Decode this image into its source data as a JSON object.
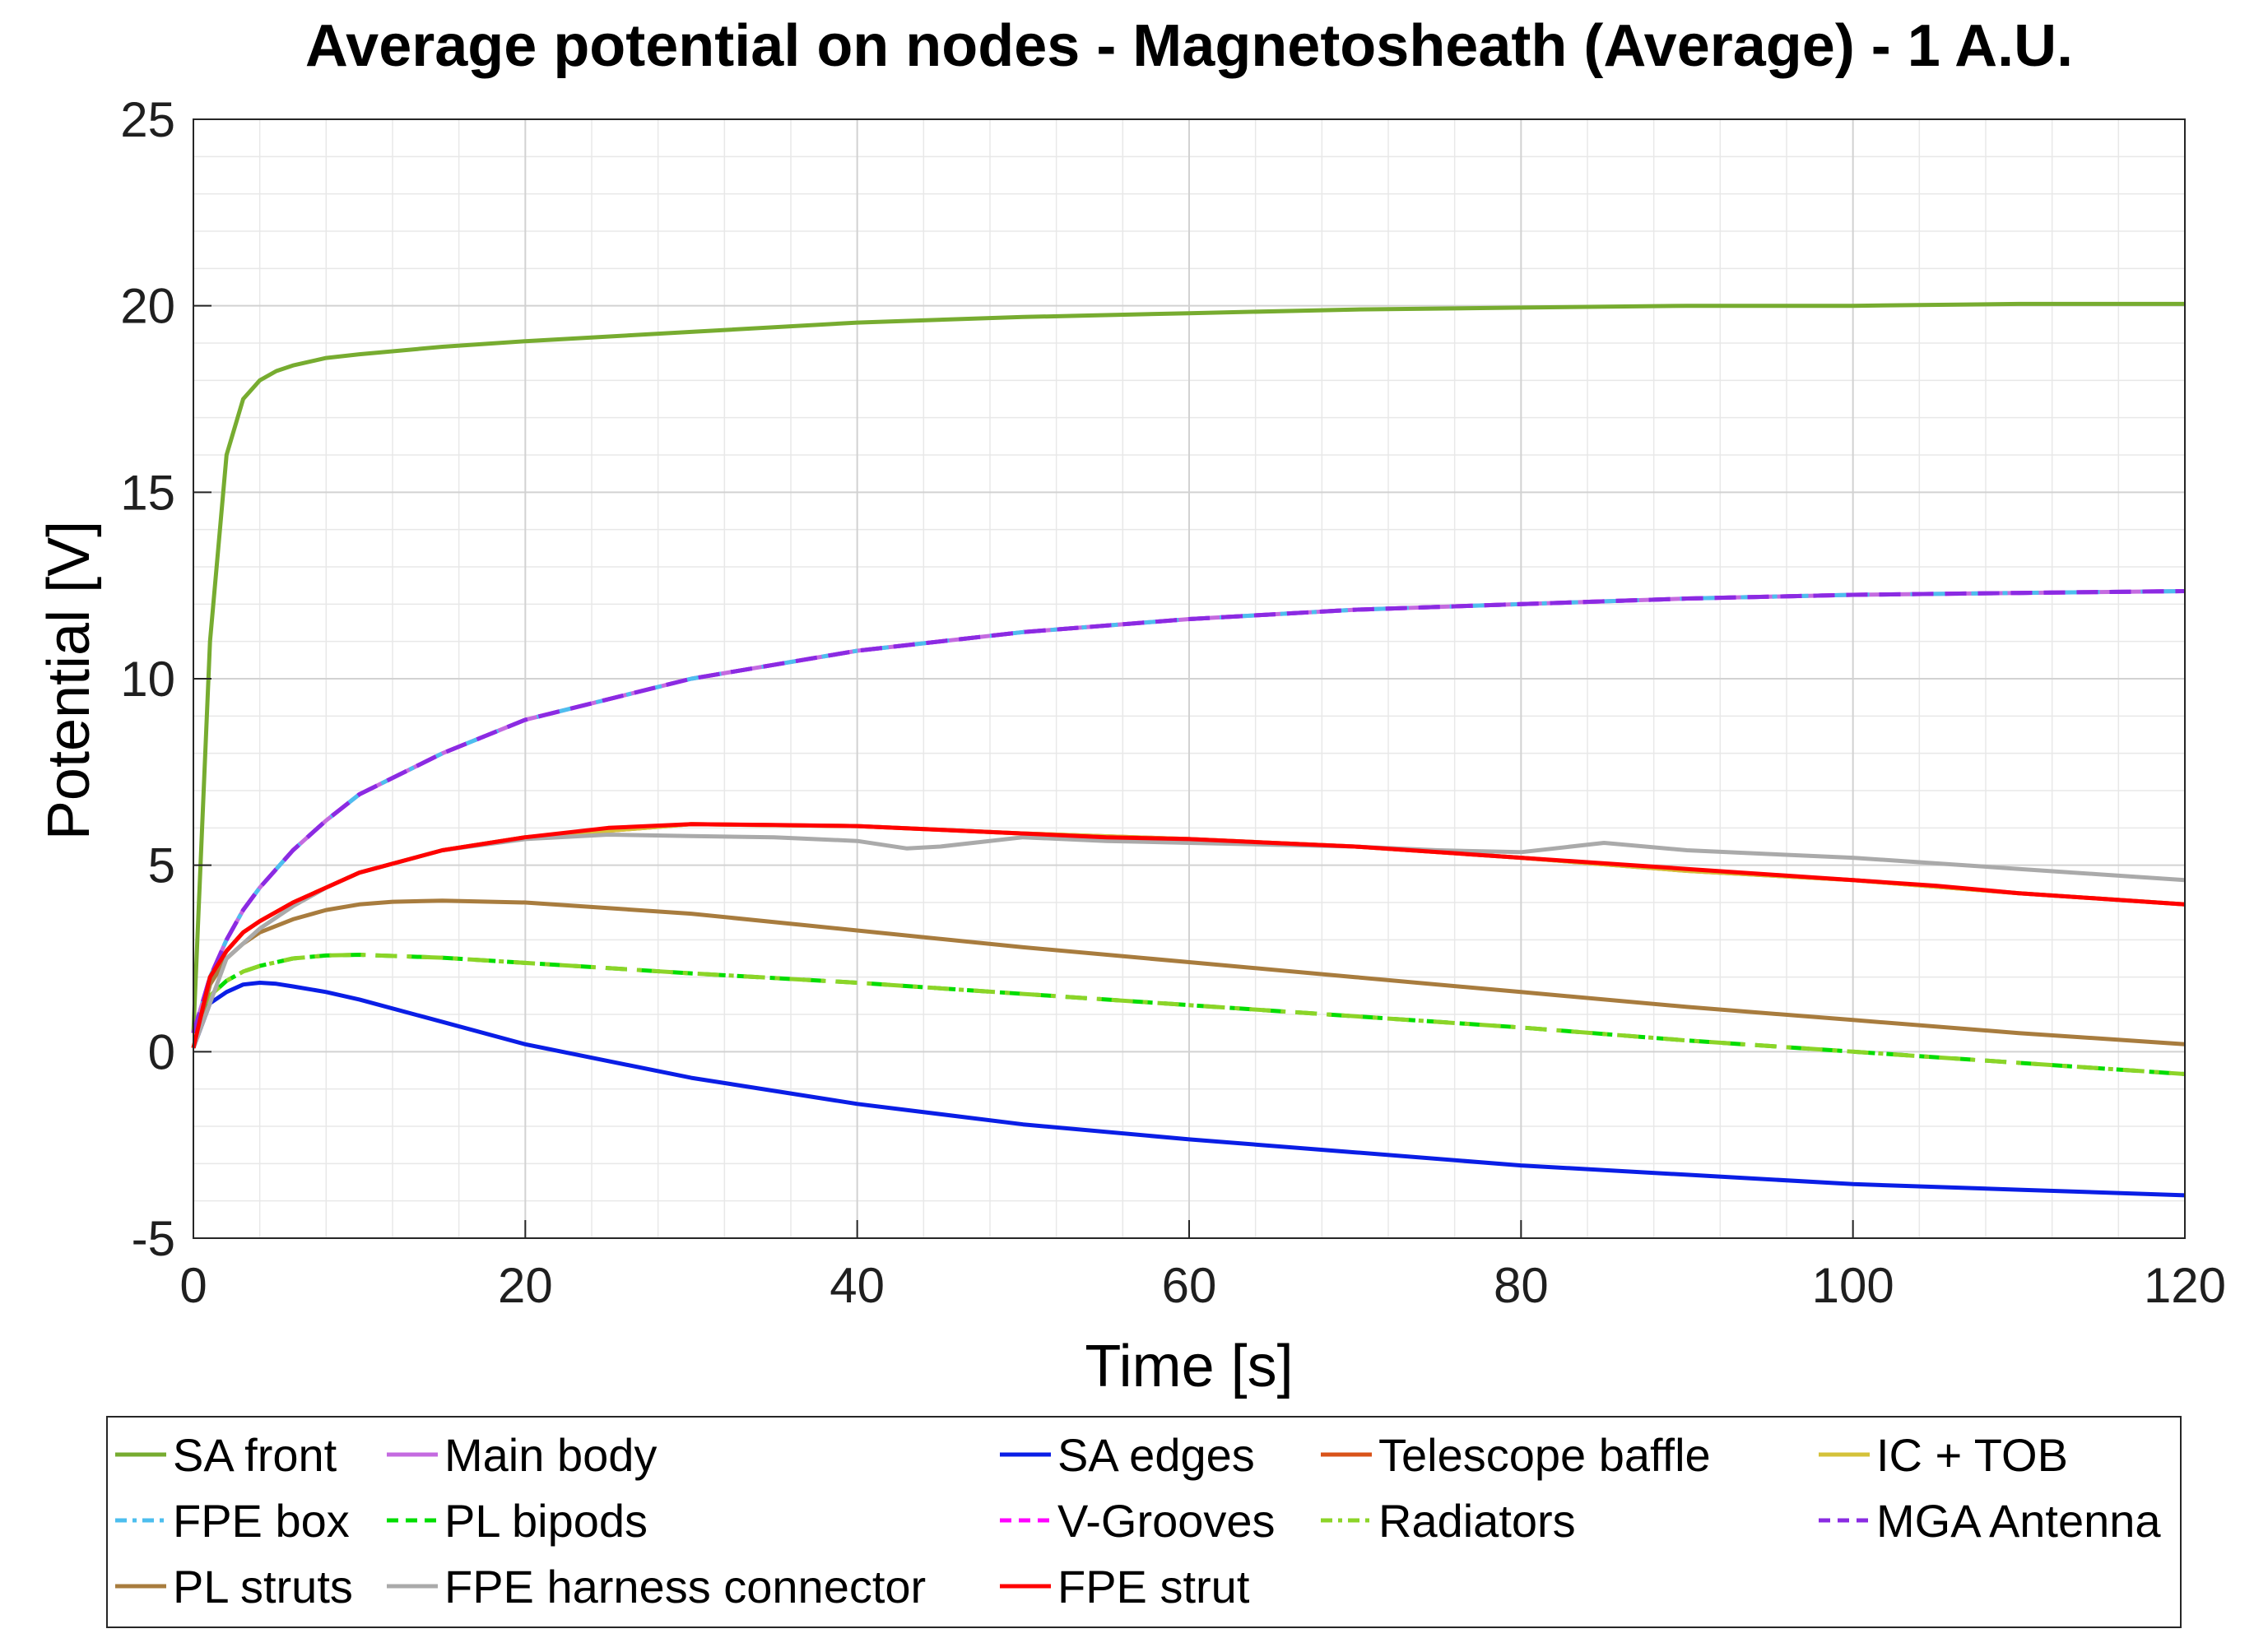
{
  "chart_data": {
    "type": "line",
    "title": "Average potential on nodes - Magnetosheath (Average) - 1 A.U.",
    "xlabel": "Time [s]",
    "ylabel": "Potential [V]",
    "xlim": [
      0,
      120
    ],
    "ylim": [
      -5,
      25
    ],
    "xticks": [
      0,
      20,
      40,
      60,
      80,
      100,
      120
    ],
    "yticks": [
      -5,
      0,
      5,
      10,
      15,
      20,
      25
    ],
    "xtick_labels": [
      "0",
      "20",
      "40",
      "60",
      "80",
      "100",
      "120"
    ],
    "ytick_labels": [
      "-5",
      "0",
      "5",
      "10",
      "15",
      "20",
      "25"
    ],
    "grid": true,
    "minor_grid": true,
    "legend_position": "bottom",
    "series": [
      {
        "name": "SA front",
        "color": "#77AC30",
        "dash": "solid",
        "x": [
          0,
          1,
          2,
          3,
          4,
          5,
          6,
          8,
          10,
          15,
          20,
          30,
          40,
          50,
          60,
          70,
          80,
          90,
          100,
          110,
          120
        ],
        "y": [
          0.5,
          11,
          16,
          17.5,
          18.0,
          18.25,
          18.4,
          18.6,
          18.7,
          18.9,
          19.05,
          19.3,
          19.55,
          19.7,
          19.8,
          19.9,
          19.95,
          20.0,
          20.0,
          20.05,
          20.05
        ]
      },
      {
        "name": "Main body",
        "color": "#C46BE0",
        "dash": "solid",
        "x": [
          0,
          1,
          2,
          3,
          4,
          6,
          8,
          10,
          15,
          20,
          30,
          40,
          50,
          60,
          70,
          80,
          90,
          100,
          110,
          120
        ],
        "y": [
          0.5,
          2.0,
          3.0,
          3.8,
          4.4,
          5.4,
          6.2,
          6.9,
          8.0,
          8.9,
          10.0,
          10.75,
          11.25,
          11.6,
          11.85,
          12.0,
          12.15,
          12.25,
          12.3,
          12.35
        ]
      },
      {
        "name": "SA edges",
        "color": "#0A1EE6",
        "dash": "solid",
        "x": [
          0,
          1,
          2,
          3,
          4,
          5,
          6,
          8,
          10,
          15,
          20,
          30,
          40,
          50,
          60,
          70,
          80,
          90,
          100,
          110,
          120
        ],
        "y": [
          0.1,
          1.3,
          1.6,
          1.8,
          1.85,
          1.82,
          1.75,
          1.6,
          1.4,
          0.8,
          0.2,
          -0.7,
          -1.4,
          -1.95,
          -2.35,
          -2.7,
          -3.05,
          -3.3,
          -3.55,
          -3.7,
          -3.85
        ]
      },
      {
        "name": "Telescope baffle",
        "color": "#D95319",
        "dash": "solid",
        "x": [
          0,
          1,
          2,
          3,
          4,
          6,
          8,
          10,
          15,
          20,
          30,
          40,
          50,
          60,
          70,
          80,
          90,
          100,
          110,
          120
        ],
        "y": [
          0.1,
          2.0,
          2.7,
          3.2,
          3.5,
          4.0,
          4.4,
          4.8,
          5.4,
          5.75,
          6.1,
          6.05,
          5.85,
          5.7,
          5.5,
          5.2,
          4.85,
          4.6,
          4.25,
          3.95
        ]
      },
      {
        "name": "IC + TOB",
        "color": "#D4C23A",
        "dash": "solid",
        "x": [
          0,
          1,
          2,
          3,
          4,
          6,
          8,
          10,
          15,
          20,
          30,
          40,
          50,
          60,
          70,
          80,
          90,
          100,
          110,
          120
        ],
        "y": [
          0.1,
          2.0,
          2.7,
          3.2,
          3.5,
          4.0,
          4.4,
          4.8,
          5.4,
          5.75,
          6.1,
          6.05,
          5.85,
          5.7,
          5.5,
          5.2,
          4.85,
          4.6,
          4.25,
          3.95
        ]
      },
      {
        "name": "FPE box",
        "color": "#4DBEEE",
        "dash": "dash-dot",
        "x": [
          0,
          1,
          2,
          3,
          4,
          6,
          8,
          10,
          15,
          20,
          30,
          40,
          50,
          60,
          70,
          80,
          90,
          100,
          110,
          120
        ],
        "y": [
          0.5,
          2.0,
          3.0,
          3.8,
          4.4,
          5.4,
          6.2,
          6.9,
          8.0,
          8.9,
          10.0,
          10.75,
          11.25,
          11.6,
          11.85,
          12.0,
          12.15,
          12.25,
          12.3,
          12.35
        ]
      },
      {
        "name": "PL bipods",
        "color": "#00DD00",
        "dash": "dash",
        "x": [
          0,
          1,
          2,
          3,
          4,
          6,
          8,
          10,
          15,
          20,
          30,
          40,
          50,
          60,
          70,
          80,
          90,
          100,
          110,
          120
        ],
        "y": [
          0.1,
          1.5,
          1.9,
          2.15,
          2.3,
          2.5,
          2.58,
          2.6,
          2.52,
          2.38,
          2.1,
          1.85,
          1.55,
          1.25,
          0.95,
          0.65,
          0.3,
          0.0,
          -0.3,
          -0.6
        ]
      },
      {
        "name": "V-Grooves",
        "color": "#FF00FF",
        "dash": "dash",
        "x": [
          0,
          1,
          2,
          3,
          4,
          6,
          8,
          10,
          15,
          20,
          30,
          40,
          50,
          60,
          70,
          80,
          90,
          100,
          110,
          120
        ],
        "y": [
          0.5,
          2.0,
          3.0,
          3.8,
          4.4,
          5.4,
          6.2,
          6.9,
          8.0,
          8.9,
          10.0,
          10.75,
          11.25,
          11.6,
          11.85,
          12.0,
          12.15,
          12.25,
          12.3,
          12.35
        ]
      },
      {
        "name": "Radiators",
        "color": "#8CD428",
        "dash": "dash-dot",
        "x": [
          0,
          1,
          2,
          3,
          4,
          6,
          8,
          10,
          15,
          20,
          30,
          40,
          50,
          60,
          70,
          80,
          90,
          100,
          110,
          120
        ],
        "y": [
          0.1,
          1.5,
          1.9,
          2.15,
          2.3,
          2.5,
          2.58,
          2.6,
          2.52,
          2.38,
          2.1,
          1.85,
          1.55,
          1.25,
          0.95,
          0.65,
          0.3,
          0.0,
          -0.3,
          -0.6
        ]
      },
      {
        "name": "MGA Antenna",
        "color": "#8A2BE2",
        "dash": "dash",
        "x": [
          0,
          1,
          2,
          3,
          4,
          6,
          8,
          10,
          15,
          20,
          30,
          40,
          50,
          60,
          70,
          80,
          90,
          100,
          110,
          120
        ],
        "y": [
          0.5,
          2.0,
          3.0,
          3.8,
          4.4,
          5.4,
          6.2,
          6.9,
          8.0,
          8.9,
          10.0,
          10.75,
          11.25,
          11.6,
          11.85,
          12.0,
          12.15,
          12.25,
          12.3,
          12.35
        ]
      },
      {
        "name": "PL struts",
        "color": "#A87C3E",
        "dash": "solid",
        "x": [
          0,
          1,
          2,
          3,
          4,
          6,
          8,
          10,
          12,
          15,
          20,
          30,
          40,
          50,
          60,
          70,
          80,
          90,
          100,
          110,
          120
        ],
        "y": [
          0.1,
          1.8,
          2.5,
          2.9,
          3.2,
          3.55,
          3.8,
          3.95,
          4.02,
          4.05,
          4.0,
          3.7,
          3.25,
          2.8,
          2.4,
          2.0,
          1.6,
          1.2,
          0.85,
          0.5,
          0.2
        ]
      },
      {
        "name": "FPE harness connector",
        "color": "#AAAAAA",
        "dash": "solid",
        "x": [
          0,
          2,
          4,
          6,
          8,
          10,
          15,
          20,
          25,
          30,
          35,
          40,
          43,
          45,
          50,
          55,
          60,
          65,
          70,
          75,
          80,
          85,
          90,
          95,
          100,
          105,
          110,
          115,
          120
        ],
        "y": [
          0.1,
          2.5,
          3.3,
          3.9,
          4.4,
          4.8,
          5.4,
          5.7,
          5.82,
          5.78,
          5.75,
          5.65,
          5.45,
          5.5,
          5.75,
          5.65,
          5.6,
          5.55,
          5.5,
          5.4,
          5.35,
          5.6,
          5.4,
          5.3,
          5.2,
          5.05,
          4.9,
          4.75,
          4.6
        ]
      },
      {
        "name": "FPE strut",
        "color": "#FF0000",
        "dash": "solid",
        "x": [
          0,
          1,
          2,
          3,
          4,
          6,
          8,
          10,
          15,
          20,
          25,
          30,
          35,
          40,
          45,
          50,
          55,
          60,
          65,
          70,
          75,
          80,
          85,
          90,
          95,
          100,
          105,
          110,
          115,
          120
        ],
        "y": [
          0.1,
          2.0,
          2.7,
          3.2,
          3.5,
          4.0,
          4.4,
          4.8,
          5.4,
          5.75,
          6.0,
          6.1,
          6.08,
          6.05,
          5.95,
          5.85,
          5.75,
          5.7,
          5.6,
          5.5,
          5.35,
          5.2,
          5.05,
          4.9,
          4.75,
          4.6,
          4.45,
          4.25,
          4.1,
          3.95
        ]
      }
    ]
  }
}
